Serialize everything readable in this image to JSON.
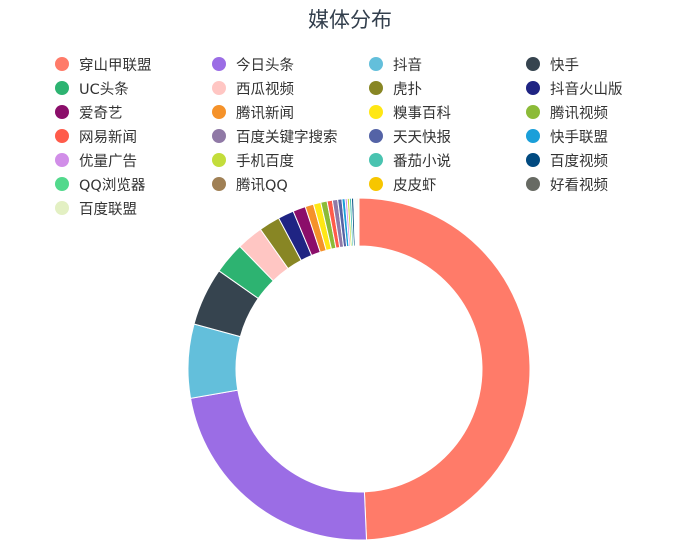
{
  "chart_data": {
    "type": "pie",
    "variant": "donut",
    "title": "媒体分布",
    "legend_position": "top",
    "slices": [
      {
        "name": "穿山甲联盟",
        "value": 49.4,
        "color": "#ff7b69"
      },
      {
        "name": "今日头条",
        "value": 23.0,
        "color": "#9b6de5"
      },
      {
        "name": "抖音",
        "value": 7.0,
        "color": "#63bfdb"
      },
      {
        "name": "快手",
        "value": 5.5,
        "color": "#36444f"
      },
      {
        "name": "UC头条",
        "value": 3.0,
        "color": "#2db371"
      },
      {
        "name": "西瓜视频",
        "value": 2.5,
        "color": "#ffc6c3"
      },
      {
        "name": "虎扑",
        "value": 2.0,
        "color": "#888624"
      },
      {
        "name": "抖音火山版",
        "value": 1.5,
        "color": "#1f2483"
      },
      {
        "name": "爱奇艺",
        "value": 1.2,
        "color": "#8b0e6a"
      },
      {
        "name": "腾讯新闻",
        "value": 0.8,
        "color": "#f5922a"
      },
      {
        "name": "糗事百科",
        "value": 0.7,
        "color": "#ffe714"
      },
      {
        "name": "腾讯视频",
        "value": 0.6,
        "color": "#8cbb38"
      },
      {
        "name": "网易新闻",
        "value": 0.5,
        "color": "#ff5b4a"
      },
      {
        "name": "百度关键字搜索",
        "value": 0.5,
        "color": "#9079a6"
      },
      {
        "name": "天天快报",
        "value": 0.4,
        "color": "#5463a6"
      },
      {
        "name": "快手联盟",
        "value": 0.3,
        "color": "#1a9fd9"
      },
      {
        "name": "优量广告",
        "value": 0.2,
        "color": "#d18ee8"
      },
      {
        "name": "手机百度",
        "value": 0.2,
        "color": "#c3dd3b"
      },
      {
        "name": "番茄小说",
        "value": 0.2,
        "color": "#49c3b0"
      },
      {
        "name": "百度视频",
        "value": 0.2,
        "color": "#014a80"
      },
      {
        "name": "QQ浏览器",
        "value": 0.1,
        "color": "#52d98c"
      },
      {
        "name": "腾讯QQ",
        "value": 0.1,
        "color": "#a08055"
      },
      {
        "name": "皮皮虾",
        "value": 0.1,
        "color": "#f7c600"
      },
      {
        "name": "好看视频",
        "value": 0.1,
        "color": "#676a63"
      },
      {
        "name": "百度联盟",
        "value": 0.1,
        "color": "#e3f0c3"
      }
    ]
  }
}
